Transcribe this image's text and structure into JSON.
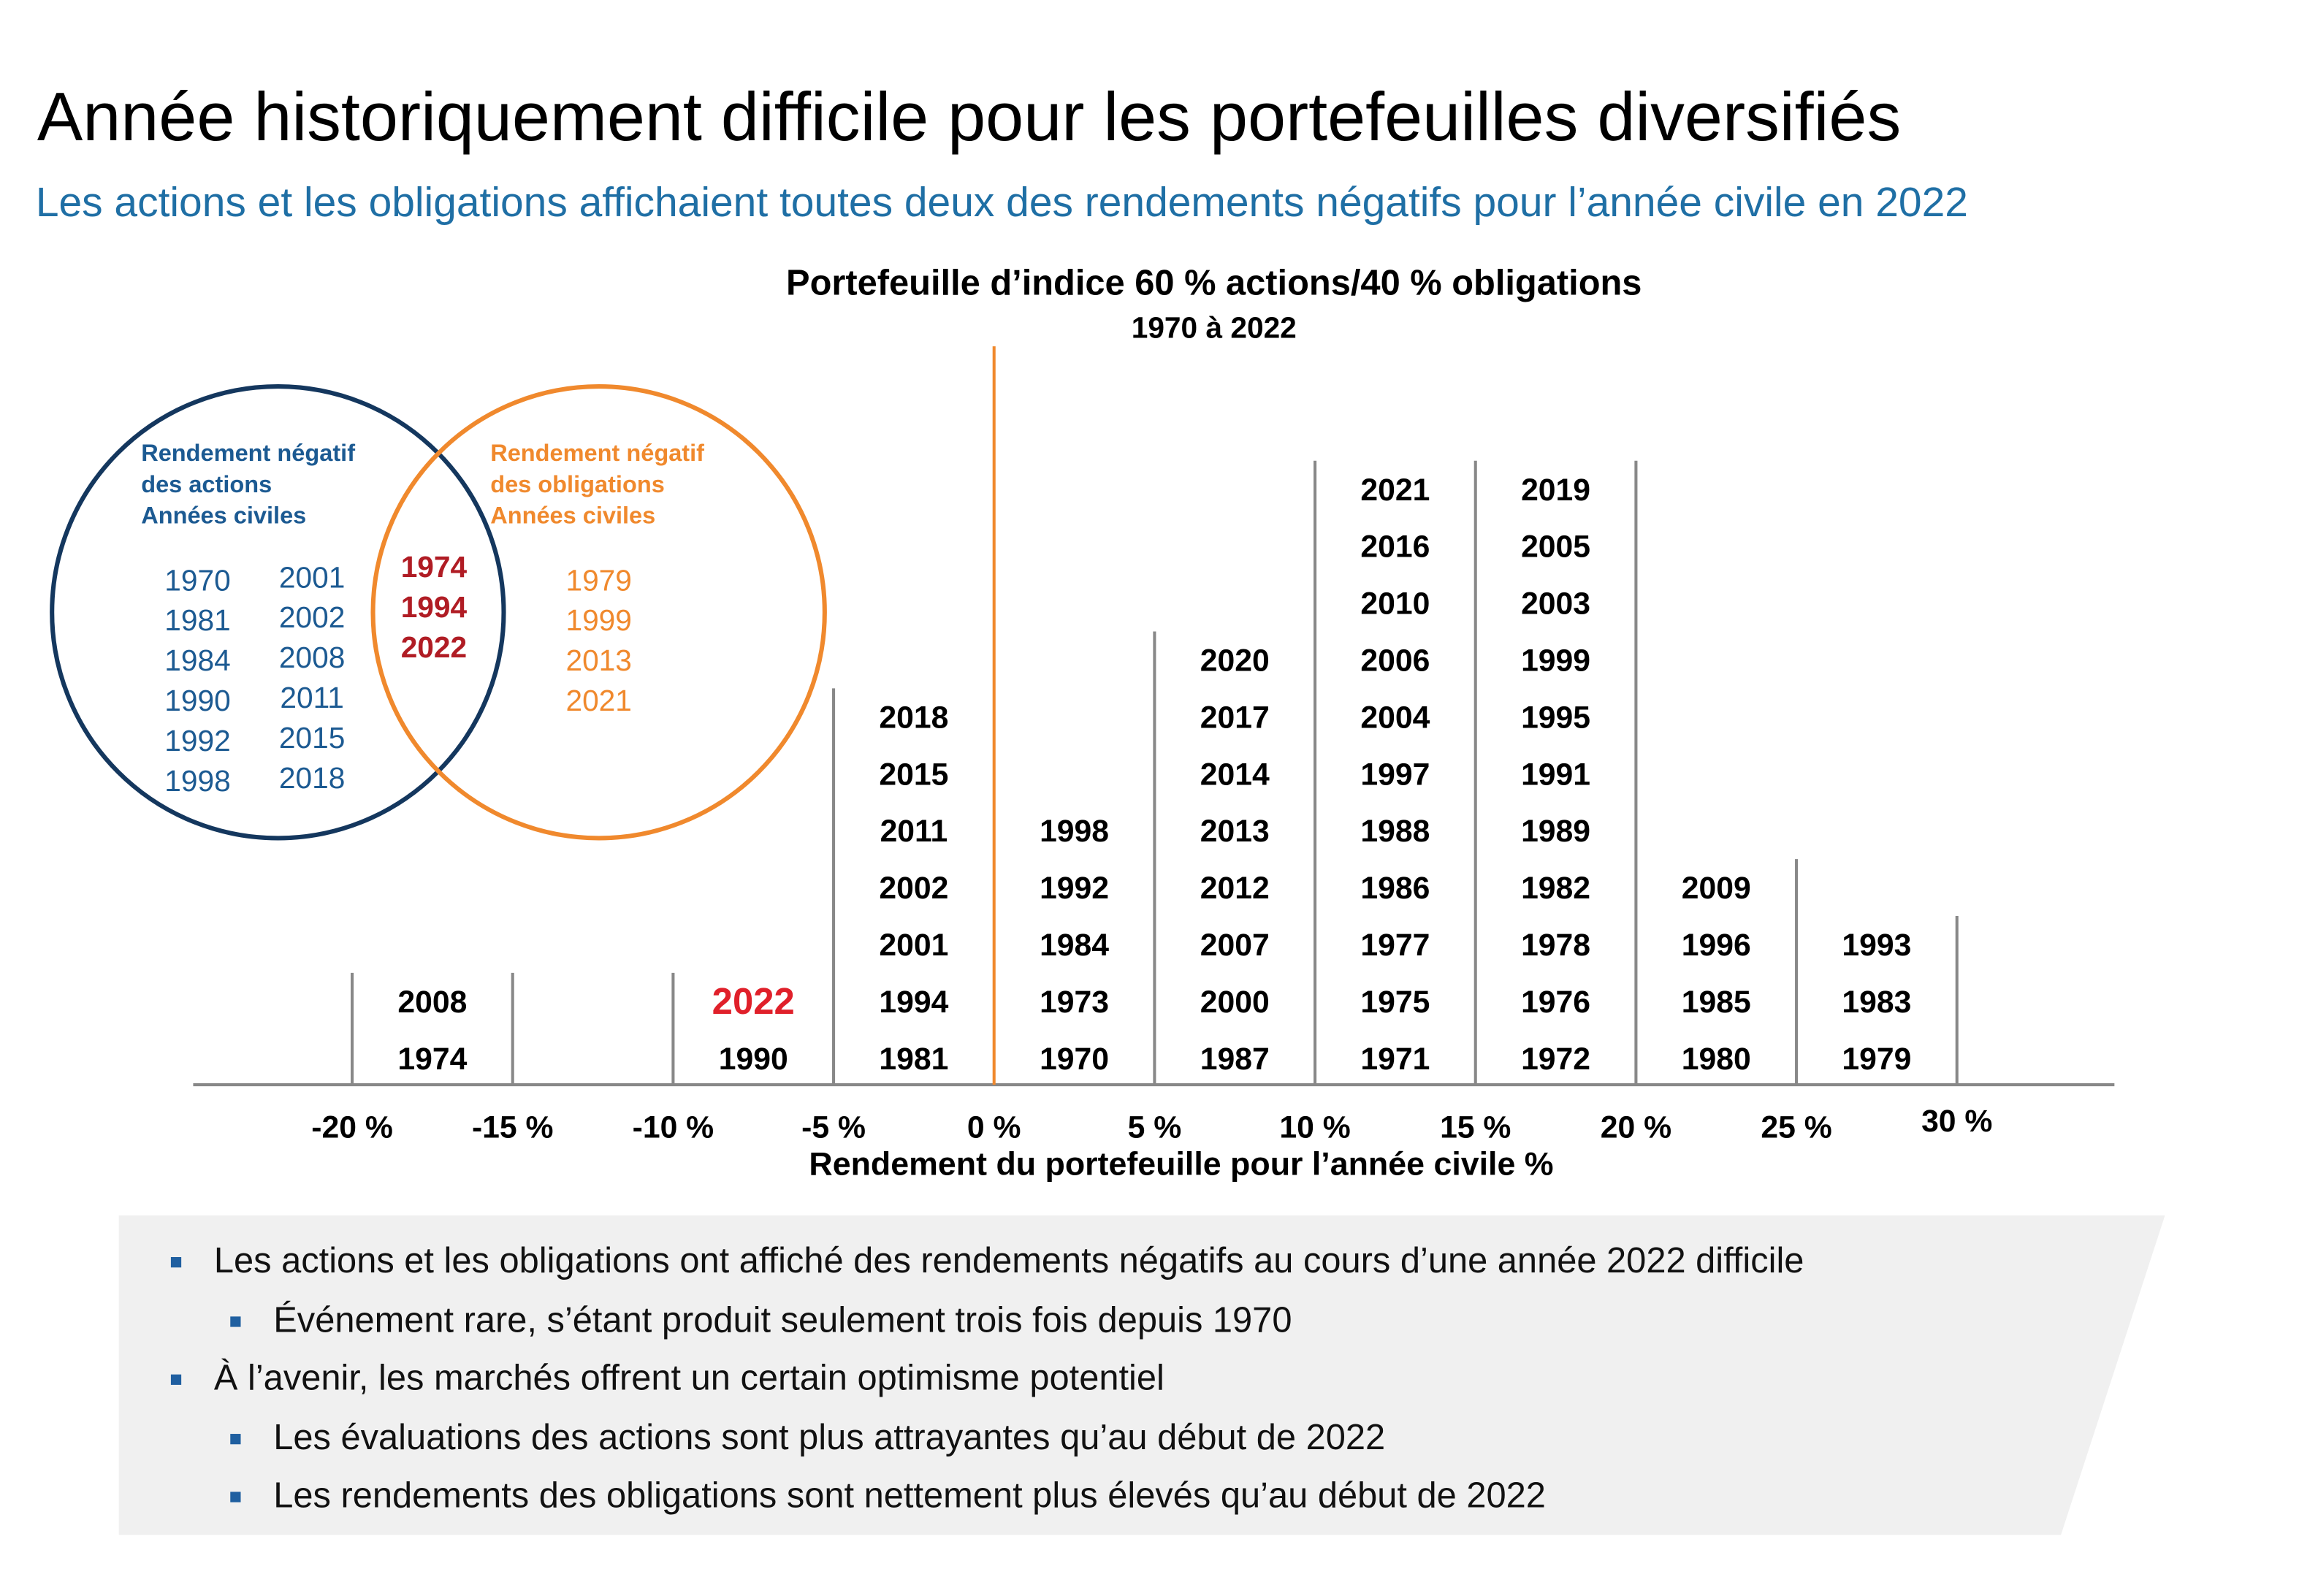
{
  "title": "Année historiquement difficile pour les portefeuilles diversifiés",
  "subtitle": "Les actions et les obligations affichaient toutes deux des rendements négatifs pour l’année civile en 2022",
  "venn": {
    "stocks": {
      "heading": [
        "Rendement négatif",
        "des actions",
        "Années civiles"
      ],
      "color": "#1c5a92",
      "years": [
        "1970",
        "1981",
        "1984",
        "1990",
        "1992",
        "1998",
        "2001",
        "2002",
        "2008",
        "2011",
        "2015",
        "2018"
      ]
    },
    "both": {
      "color": "#b01c24",
      "years": [
        "1974",
        "1994",
        "2022"
      ]
    },
    "bonds": {
      "heading": [
        "Rendement négatif",
        "des obligations",
        "Années civiles"
      ],
      "color": "#f0892d",
      "years": [
        "1979",
        "1999",
        "2013",
        "2021"
      ]
    }
  },
  "histogram": {
    "title": "Portefeuille d’indice 60 % actions/40 % obligations",
    "subtitle": "1970 à 2022",
    "x_label": "Rendement du portefeuille pour l’année civile %",
    "ticks": [
      "-20 %",
      "-15 %",
      "-10 %",
      "-5 %",
      "0 %",
      "5 %",
      "10 %",
      "15 %",
      "20 %",
      "25 %",
      "30 %"
    ],
    "zero_color": "#f0892d",
    "highlight": "2022",
    "highlight_color": "#e0202a",
    "columns": [
      [
        "1974",
        "2008"
      ],
      [],
      [
        "1990",
        "2022"
      ],
      [
        "1981",
        "1994",
        "2001",
        "2002",
        "2011",
        "2015",
        "2018"
      ],
      [
        "1970",
        "1973",
        "1984",
        "1992",
        "1998"
      ],
      [
        "1987",
        "2000",
        "2007",
        "2012",
        "2013",
        "2014",
        "2017",
        "2020"
      ],
      [
        "1971",
        "1975",
        "1977",
        "1986",
        "1988",
        "1997",
        "2004",
        "2006",
        "2010",
        "2016",
        "2021"
      ],
      [
        "1972",
        "1976",
        "1978",
        "1982",
        "1989",
        "1991",
        "1995",
        "1999",
        "2003",
        "2005",
        "2019"
      ],
      [
        "1980",
        "1985",
        "1996",
        "2009"
      ],
      [
        "1979",
        "1983",
        "1993"
      ]
    ]
  },
  "bullets": [
    {
      "level": 1,
      "text": "Les actions et les obligations ont affiché des rendements négatifs au cours d’une année 2022 difficile"
    },
    {
      "level": 2,
      "text": "Événement rare, s’étant produit seulement trois fois depuis 1970"
    },
    {
      "level": 1,
      "text": "À l’avenir, les marchés offrent un certain optimisme potentiel"
    },
    {
      "level": 2,
      "text": "Les évaluations des actions sont plus attrayantes qu’au début de 2022"
    },
    {
      "level": 2,
      "text": "Les rendements des obligations sont nettement plus élevés qu’au début de 2022"
    }
  ]
}
